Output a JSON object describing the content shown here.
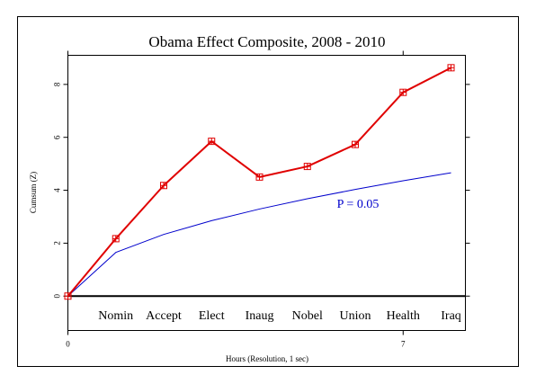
{
  "chart_data": {
    "type": "line",
    "title": "Obama Effect Composite, 2008 - 2010",
    "xlabel": "Hours (Resolution, 1 sec)",
    "ylabel": "Cumsum (Z)",
    "x_ticks": [
      0,
      7
    ],
    "y_ticks": [
      0,
      2,
      4,
      6,
      8
    ],
    "xlim": [
      0,
      8.3
    ],
    "ylim": [
      -1.3,
      9.1
    ],
    "categories": [
      "Nomin",
      "Accept",
      "Elect",
      "Inaug",
      "Nobel",
      "Union",
      "Health",
      "Iraq"
    ],
    "series": [
      {
        "color": "#e00000",
        "marker": "square",
        "x": [
          0,
          1,
          2,
          3,
          4,
          5,
          6,
          7,
          8
        ],
        "y": [
          0,
          2.17,
          4.18,
          5.85,
          4.5,
          4.9,
          5.73,
          7.7,
          8.63
        ]
      },
      {
        "color": "#0000cc",
        "x": [
          0,
          1,
          2,
          3,
          4,
          5,
          6,
          7,
          8
        ],
        "y": [
          0,
          1.65,
          2.33,
          2.85,
          3.29,
          3.68,
          4.03,
          4.36,
          4.66
        ]
      }
    ],
    "annotations": [
      {
        "text": "P = 0.05",
        "color": "#0000cc"
      }
    ],
    "baseline": 0,
    "grid": false
  }
}
